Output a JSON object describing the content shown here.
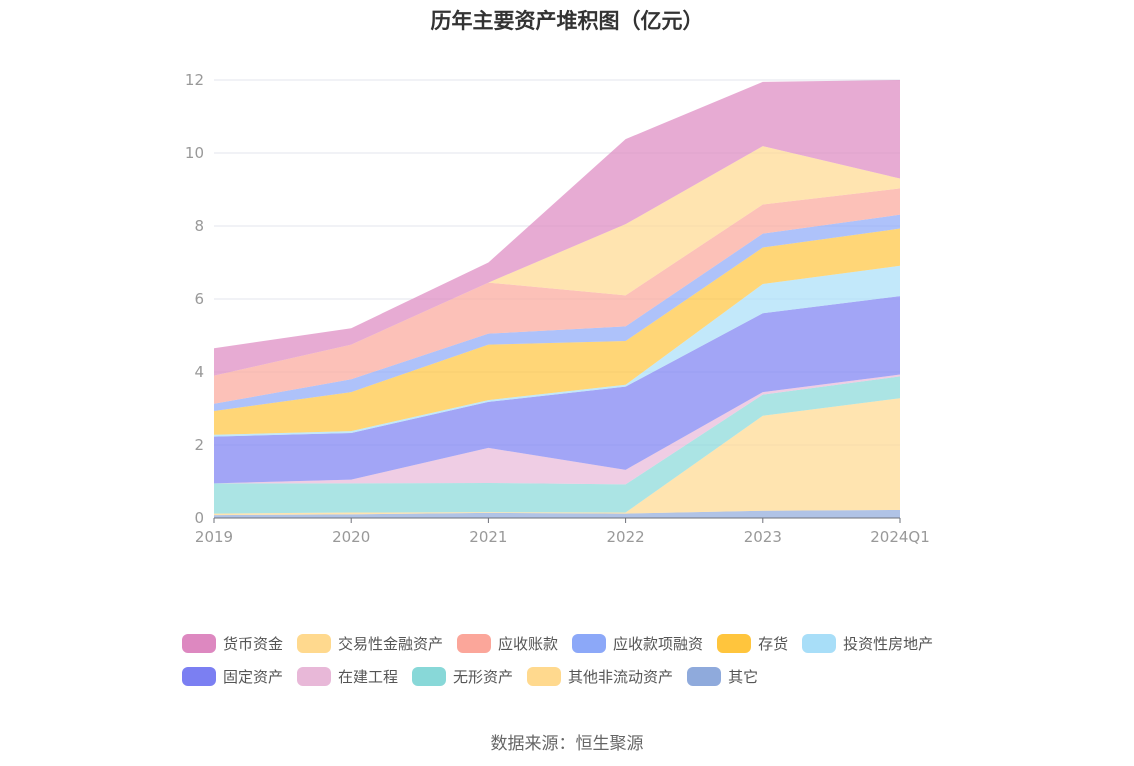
{
  "title": "历年主要资产堆积图（亿元）",
  "source": "数据来源：恒生聚源",
  "chart_data": {
    "type": "area",
    "stacked": true,
    "title": "历年主要资产堆积图（亿元）",
    "x": [
      "2019",
      "2020",
      "2021",
      "2022",
      "2023",
      "2024Q1"
    ],
    "ylim": [
      0,
      12
    ],
    "yticks": [
      0,
      2,
      4,
      6,
      8,
      10,
      12
    ],
    "grid": true,
    "legend_position": "bottom",
    "series": [
      {
        "name": "其它",
        "color": "#8FAADC",
        "values": [
          0.08,
          0.1,
          0.14,
          0.12,
          0.2,
          0.22
        ]
      },
      {
        "name": "其他非流动资产",
        "color": "#FFD98E",
        "values": [
          0.04,
          0.05,
          0.02,
          0.03,
          2.6,
          3.06
        ]
      },
      {
        "name": "无形资产",
        "color": "#88D8D8",
        "values": [
          0.83,
          0.8,
          0.8,
          0.77,
          0.58,
          0.6
        ]
      },
      {
        "name": "在建工程",
        "color": "#E8B8D8",
        "values": [
          0.0,
          0.1,
          0.96,
          0.4,
          0.07,
          0.05
        ]
      },
      {
        "name": "固定资产",
        "color": "#7B7FF2",
        "values": [
          1.28,
          1.28,
          1.26,
          2.28,
          2.16,
          2.15
        ]
      },
      {
        "name": "投资性房地产",
        "color": "#A8DEF8",
        "values": [
          0.05,
          0.05,
          0.05,
          0.05,
          0.8,
          0.83
        ]
      },
      {
        "name": "存货",
        "color": "#FFC53D",
        "values": [
          0.65,
          1.07,
          1.52,
          1.2,
          1.0,
          1.02
        ]
      },
      {
        "name": "应收款项融资",
        "color": "#8CA8F8",
        "values": [
          0.2,
          0.35,
          0.3,
          0.4,
          0.38,
          0.38
        ]
      },
      {
        "name": "应收账款",
        "color": "#FBA69A",
        "values": [
          0.77,
          0.95,
          1.4,
          0.85,
          0.8,
          0.72
        ]
      },
      {
        "name": "交易性金融资产",
        "color": "#FFD98E",
        "values": [
          0.0,
          0.0,
          0.0,
          1.95,
          1.6,
          0.27
        ]
      },
      {
        "name": "货币资金",
        "color": "#DD88C0",
        "values": [
          0.75,
          0.45,
          0.55,
          2.33,
          1.76,
          2.7
        ]
      }
    ]
  },
  "legend": [
    [
      "货币资金",
      "交易性金融资产",
      "应收账款",
      "应收款项融资",
      "存货",
      "投资性房地产"
    ],
    [
      "固定资产",
      "在建工程",
      "无形资产",
      "其他非流动资产",
      "其它"
    ]
  ]
}
